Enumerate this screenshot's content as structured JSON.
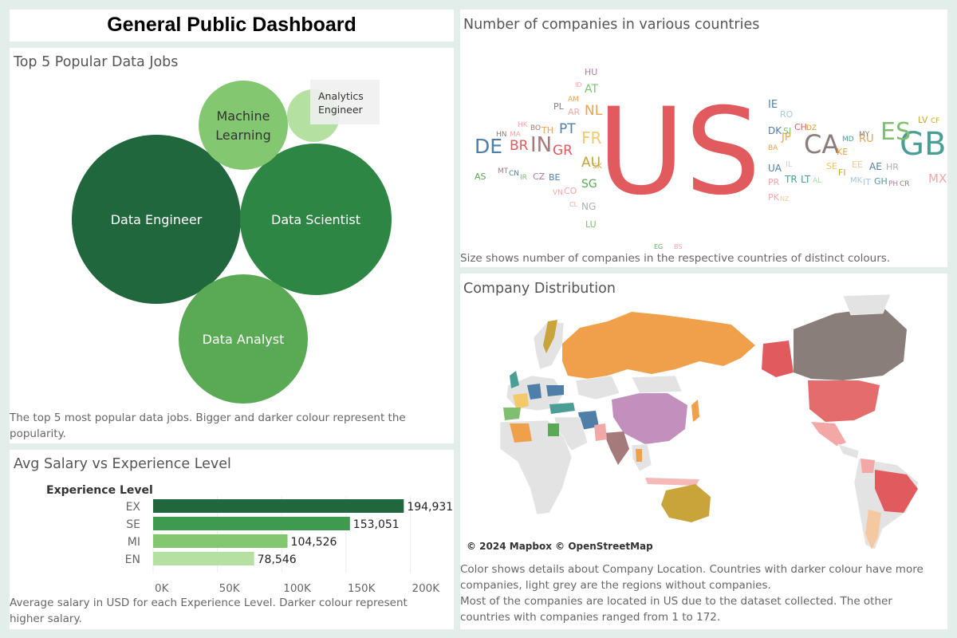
{
  "dashboard_title": "General Public Dashboard",
  "colors": {
    "background": "#e3eeeb",
    "green_darkest": "#21673d",
    "green_dark": "#2e8645",
    "green_mid": "#5aa955",
    "green_light": "#83c871",
    "green_lightest": "#b4e0a2"
  },
  "jobs": {
    "title": "Top 5 Popular Data Jobs",
    "caption": "The top 5 most popular data jobs. Bigger and darker colour represent the popularity.",
    "bubbles": [
      {
        "name": "Data Engineer",
        "rank": 1,
        "color": "#21673d"
      },
      {
        "name": "Data Scientist",
        "rank": 2,
        "color": "#2e8645"
      },
      {
        "name": "Data Analyst",
        "rank": 3,
        "color": "#5aa955"
      },
      {
        "name": "Machine Learning",
        "rank": 4,
        "color": "#83c871"
      },
      {
        "name": "Analytics Engineer",
        "rank": 5,
        "color": "#b4e0a2"
      }
    ],
    "bubble_labels": {
      "data_engineer": "Data Engineer",
      "data_scientist": "Data Scientist",
      "data_analyst": "Data Analyst",
      "ml_line1": "Machine",
      "ml_line2": "Learning",
      "ae_line1": "Analytics",
      "ae_line2": "Engineer"
    }
  },
  "salary": {
    "title": "Avg Salary vs Experience Level",
    "caption": "Average salary in USD for each Experience Level. Darker colour represent higher salary.",
    "legend_header": "Experience Level"
  },
  "chart_data": {
    "type": "bar",
    "orientation": "horizontal",
    "title": "Avg Salary vs Experience Level",
    "ylabel": "Experience Level",
    "xlabel": "",
    "categories": [
      "EX",
      "SE",
      "MI",
      "EN"
    ],
    "values": [
      194931,
      153051,
      104526,
      78546
    ],
    "value_labels": [
      "194,931",
      "153,051",
      "104,526",
      "78,546"
    ],
    "colors": [
      "#21673d",
      "#3e9a4f",
      "#83c871",
      "#b4e0a2"
    ],
    "xlim": [
      0,
      240000
    ],
    "xticks": [
      0,
      50000,
      100000,
      150000,
      200000
    ],
    "xtick_labels": [
      "0K",
      "50K",
      "100K",
      "150K",
      "200K"
    ],
    "grid": true
  },
  "wordcloud": {
    "title": "Number of companies in various countries",
    "caption": "Size shows number of companies in the respective countries of distinct colours.",
    "words": [
      {
        "t": "US",
        "c": "#e05a5e"
      },
      {
        "t": "GB",
        "c": "#4b9e96"
      },
      {
        "t": "CA",
        "c": "#8a7e7a"
      },
      {
        "t": "ES",
        "c": "#7fbf6f"
      },
      {
        "t": "IN",
        "c": "#a47a7a"
      },
      {
        "t": "DE",
        "c": "#4f7fa8"
      },
      {
        "t": "FR",
        "c": "#f3c96a"
      },
      {
        "t": "AU",
        "c": "#c9a43a"
      },
      {
        "t": "BR",
        "c": "#e05a5e"
      },
      {
        "t": "GR",
        "c": "#e05a5e"
      },
      {
        "t": "PT",
        "c": "#4f7fa8"
      },
      {
        "t": "NL",
        "c": "#f0a04b"
      },
      {
        "t": "SG",
        "c": "#5aa955"
      },
      {
        "t": "AT",
        "c": "#7fbf6f"
      },
      {
        "t": "JP",
        "c": "#f0a04b"
      },
      {
        "t": "IE",
        "c": "#4f7fa8"
      },
      {
        "t": "RU",
        "c": "#f0a04b"
      },
      {
        "t": "MX",
        "c": "#f4a7a7"
      },
      {
        "t": "HU",
        "c": "#b07aa1"
      },
      {
        "t": "PL",
        "c": "#8a7e7a"
      },
      {
        "t": "AR",
        "c": "#f4a7a7"
      },
      {
        "t": "AM",
        "c": "#f0a04b"
      },
      {
        "t": "ID",
        "c": "#f4a7a7"
      },
      {
        "t": "HK",
        "c": "#f4a7a7"
      },
      {
        "t": "BO",
        "c": "#a47a7a"
      },
      {
        "t": "TH",
        "c": "#f0a04b"
      },
      {
        "t": "HN",
        "c": "#8a7e7a"
      },
      {
        "t": "MA",
        "c": "#f4a7a7"
      },
      {
        "t": "AS",
        "c": "#5aa955"
      },
      {
        "t": "MT",
        "c": "#a47a7a"
      },
      {
        "t": "CN",
        "c": "#4f7fa8"
      },
      {
        "t": "IR",
        "c": "#7fbf6f"
      },
      {
        "t": "CZ",
        "c": "#b07aa1"
      },
      {
        "t": "BE",
        "c": "#4f7fa8"
      },
      {
        "t": "SK",
        "c": "#c9a43a"
      },
      {
        "t": "VN",
        "c": "#f4a7a7"
      },
      {
        "t": "CO",
        "c": "#f4a7a7"
      },
      {
        "t": "CL",
        "c": "#f4a7a7"
      },
      {
        "t": "NG",
        "c": "#b0b0b0"
      },
      {
        "t": "LU",
        "c": "#7fbf6f"
      },
      {
        "t": "RO",
        "c": "#a8c8e0"
      },
      {
        "t": "DK",
        "c": "#4f7fa8"
      },
      {
        "t": "SI",
        "c": "#7fbf6f"
      },
      {
        "t": "CH",
        "c": "#e05a5e"
      },
      {
        "t": "DZ",
        "c": "#c9a43a"
      },
      {
        "t": "BA",
        "c": "#f0a04b"
      },
      {
        "t": "IL",
        "c": "#d0d0d0"
      },
      {
        "t": "UA",
        "c": "#4f7fa8"
      },
      {
        "t": "PR",
        "c": "#f4a7a7"
      },
      {
        "t": "TR",
        "c": "#4b9e96"
      },
      {
        "t": "LT",
        "c": "#4b9e96"
      },
      {
        "t": "AL",
        "c": "#a8d8a0"
      },
      {
        "t": "PK",
        "c": "#f4a7a7"
      },
      {
        "t": "NZ",
        "c": "#f4c8a0"
      },
      {
        "t": "SE",
        "c": "#f3c96a"
      },
      {
        "t": "FI",
        "c": "#c9a43a"
      },
      {
        "t": "EE",
        "c": "#f4c8a0"
      },
      {
        "t": "KE",
        "c": "#f0a04b"
      },
      {
        "t": "MD",
        "c": "#4b9e96"
      },
      {
        "t": "MY",
        "c": "#8a7e7a"
      },
      {
        "t": "AE",
        "c": "#4f7fa8"
      },
      {
        "t": "HR",
        "c": "#b0b0b0"
      },
      {
        "t": "MK",
        "c": "#a8c8e0"
      },
      {
        "t": "IT",
        "c": "#a8c8e0"
      },
      {
        "t": "GH",
        "c": "#4b9e96"
      },
      {
        "t": "PH",
        "c": "#b07aa1"
      },
      {
        "t": "CR",
        "c": "#8a7e7a"
      },
      {
        "t": "LV",
        "c": "#c9a43a"
      },
      {
        "t": "CF",
        "c": "#c9a43a"
      },
      {
        "t": "EG",
        "c": "#5aa955"
      },
      {
        "t": "BS",
        "c": "#f4a7a7"
      }
    ]
  },
  "map": {
    "title": "Company Distribution",
    "attribution": "© 2024 Mapbox © OpenStreetMap",
    "caption": "Color shows details about Company Location. Countries with darker colour have more companies, light grey are the regions without companies.\nMost of the companies are located in US due to the dataset collected. The other countries with companies ranged from 1 to 172.",
    "regions": [
      {
        "name": "Russia",
        "color": "#f0a04b"
      },
      {
        "name": "Canada",
        "color": "#8a7e7a"
      },
      {
        "name": "Alaska",
        "color": "#e05a5e"
      },
      {
        "name": "United States",
        "color": "#e56c6c"
      },
      {
        "name": "Mexico",
        "color": "#f4a7a7"
      },
      {
        "name": "China",
        "color": "#c38fbd"
      },
      {
        "name": "Brazil",
        "color": "#e05a5e"
      },
      {
        "name": "Australia",
        "color": "#c9a43a"
      },
      {
        "name": "India",
        "color": "#a47a7a"
      },
      {
        "name": "Kazakhstan",
        "color": "#e0e0e0"
      }
    ]
  }
}
